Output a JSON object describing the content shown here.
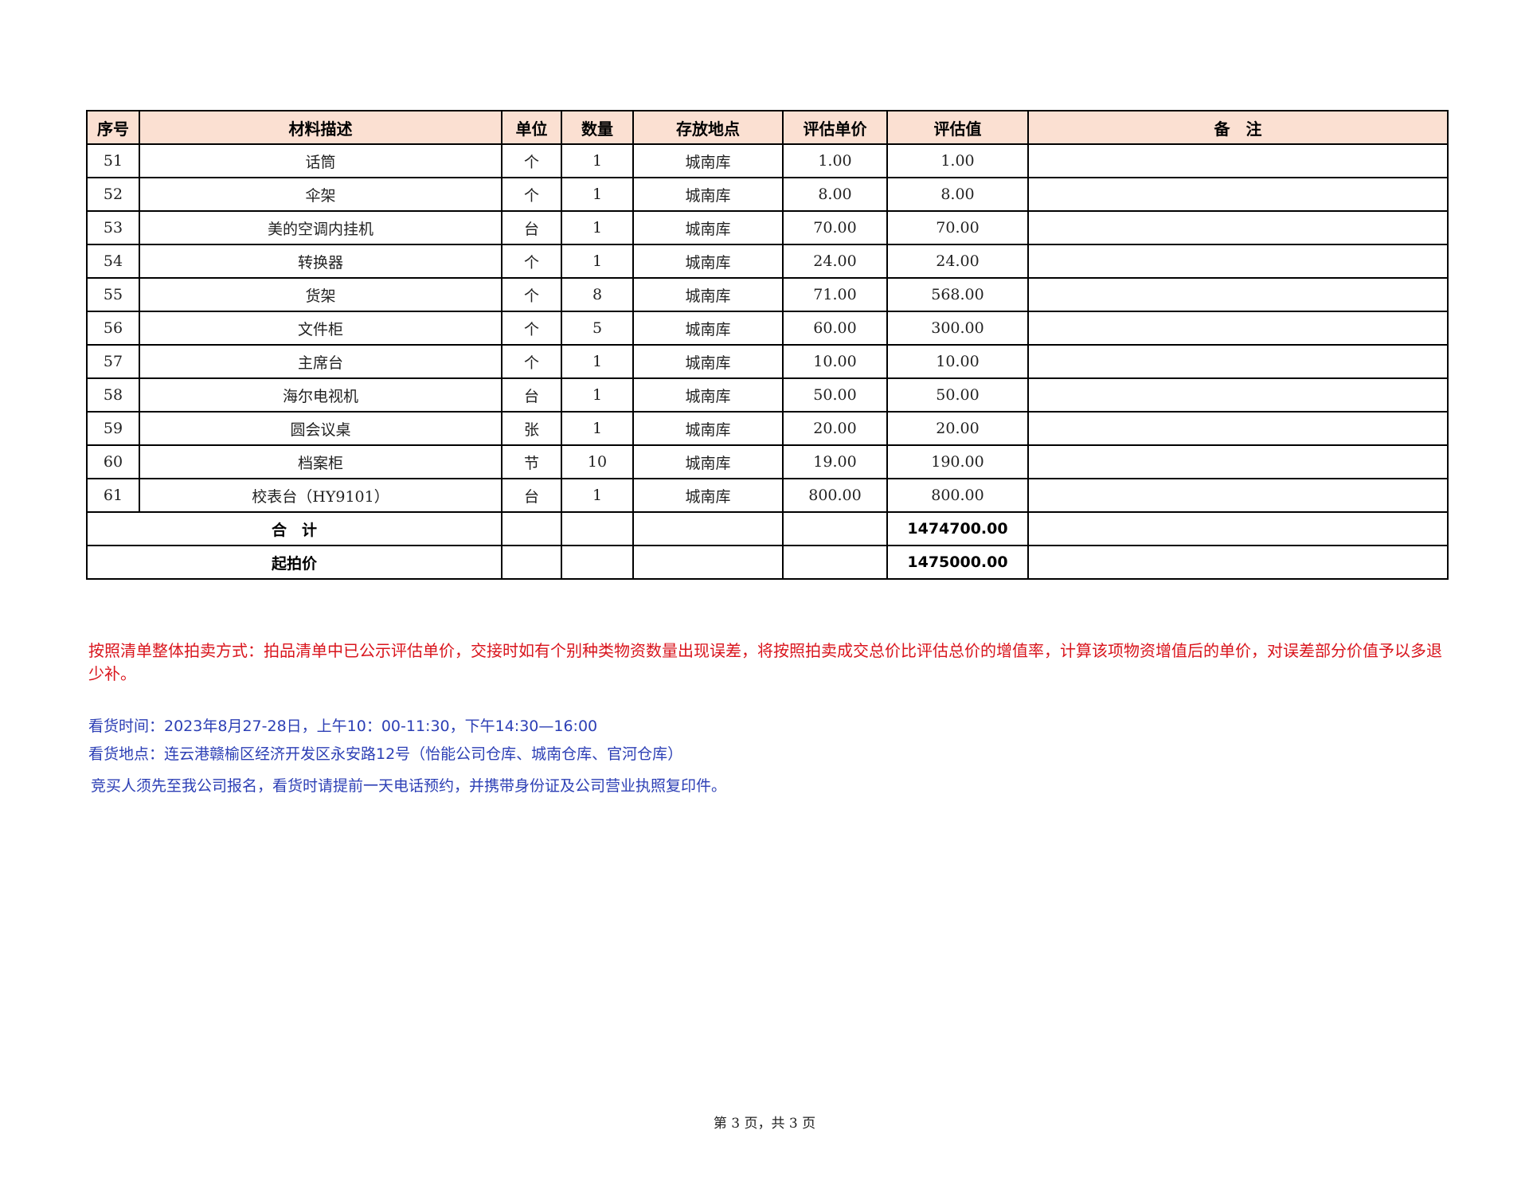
{
  "table": {
    "headers": [
      "序号",
      "材料描述",
      "单位",
      "数量",
      "存放地点",
      "评估单价",
      "评估值",
      "备　注"
    ],
    "rows": [
      [
        "51",
        "话筒",
        "个",
        "1",
        "城南库",
        "1.00",
        "1.00",
        ""
      ],
      [
        "52",
        "伞架",
        "个",
        "1",
        "城南库",
        "8.00",
        "8.00",
        ""
      ],
      [
        "53",
        "美的空调内挂机",
        "台",
        "1",
        "城南库",
        "70.00",
        "70.00",
        ""
      ],
      [
        "54",
        "转换器",
        "个",
        "1",
        "城南库",
        "24.00",
        "24.00",
        ""
      ],
      [
        "55",
        "货架",
        "个",
        "8",
        "城南库",
        "71.00",
        "568.00",
        ""
      ],
      [
        "56",
        "文件柜",
        "个",
        "5",
        "城南库",
        "60.00",
        "300.00",
        ""
      ],
      [
        "57",
        "主席台",
        "个",
        "1",
        "城南库",
        "10.00",
        "10.00",
        ""
      ],
      [
        "58",
        "海尔电视机",
        "台",
        "1",
        "城南库",
        "50.00",
        "50.00",
        ""
      ],
      [
        "59",
        "圆会议桌",
        "张",
        "1",
        "城南库",
        "20.00",
        "20.00",
        ""
      ],
      [
        "60",
        "档案柜",
        "节",
        "10",
        "城南库",
        "19.00",
        "190.00",
        ""
      ],
      [
        "61",
        "校表台（HY9101）",
        "台",
        "1",
        "城南库",
        "800.00",
        "800.00",
        ""
      ]
    ],
    "total_label": "合　计",
    "total_value": "1474700.00",
    "start_label": "起拍价",
    "start_value": "1475000.00"
  },
  "notes": {
    "red": "按照清单整体拍卖方式：拍品清单中已公示评估单价，交接时如有个别种类物资数量出现误差，将按照拍卖成交总价比评估总价的增值率，计算该项物资增值后的单价，对误差部分价值予以多退少补。",
    "time": "看货时间：2023年8月27-28日，上午10：00-11:30，下午14:30—16:00",
    "place": "看货地点：连云港赣榆区经济开发区永安路12号（怡能公司仓库、城南仓库、官河仓库）",
    "register": "竞买人须先至我公司报名，看货时请提前一天电话预约，并携带身份证及公司营业执照复印件。"
  },
  "footer": "第 3 页，共 3 页",
  "colors": {
    "header_bg": "#fbe0d2",
    "red_text": "#d9141c",
    "blue_text": "#2c3fb5"
  }
}
